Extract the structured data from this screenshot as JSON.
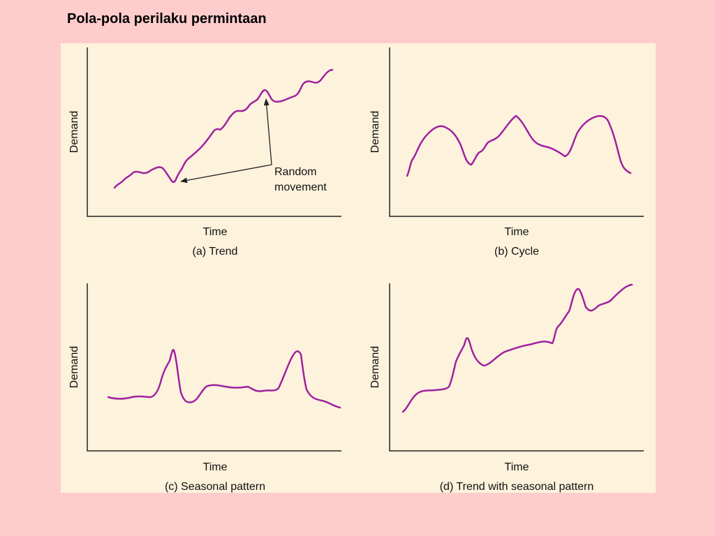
{
  "title": "Pola-pola perilaku permintaan",
  "colors": {
    "curve": "#a020a0",
    "axis": "#222222",
    "panel_bg": "#fdf2dc",
    "page_bg": "#ffcccc"
  },
  "panels": [
    {
      "id": "a",
      "xlabel": "Time",
      "ylabel": "Demand",
      "caption": "(a) Trend"
    },
    {
      "id": "b",
      "xlabel": "Time",
      "ylabel": "Demand",
      "caption": "(b) Cycle"
    },
    {
      "id": "c",
      "xlabel": "Time",
      "ylabel": "Demand",
      "caption": "(c) Seasonal pattern"
    },
    {
      "id": "d",
      "xlabel": "Time",
      "ylabel": "Demand",
      "caption": "(d) Trend with seasonal pattern"
    }
  ],
  "annotation": {
    "line1": "Random",
    "line2": "movement"
  }
}
